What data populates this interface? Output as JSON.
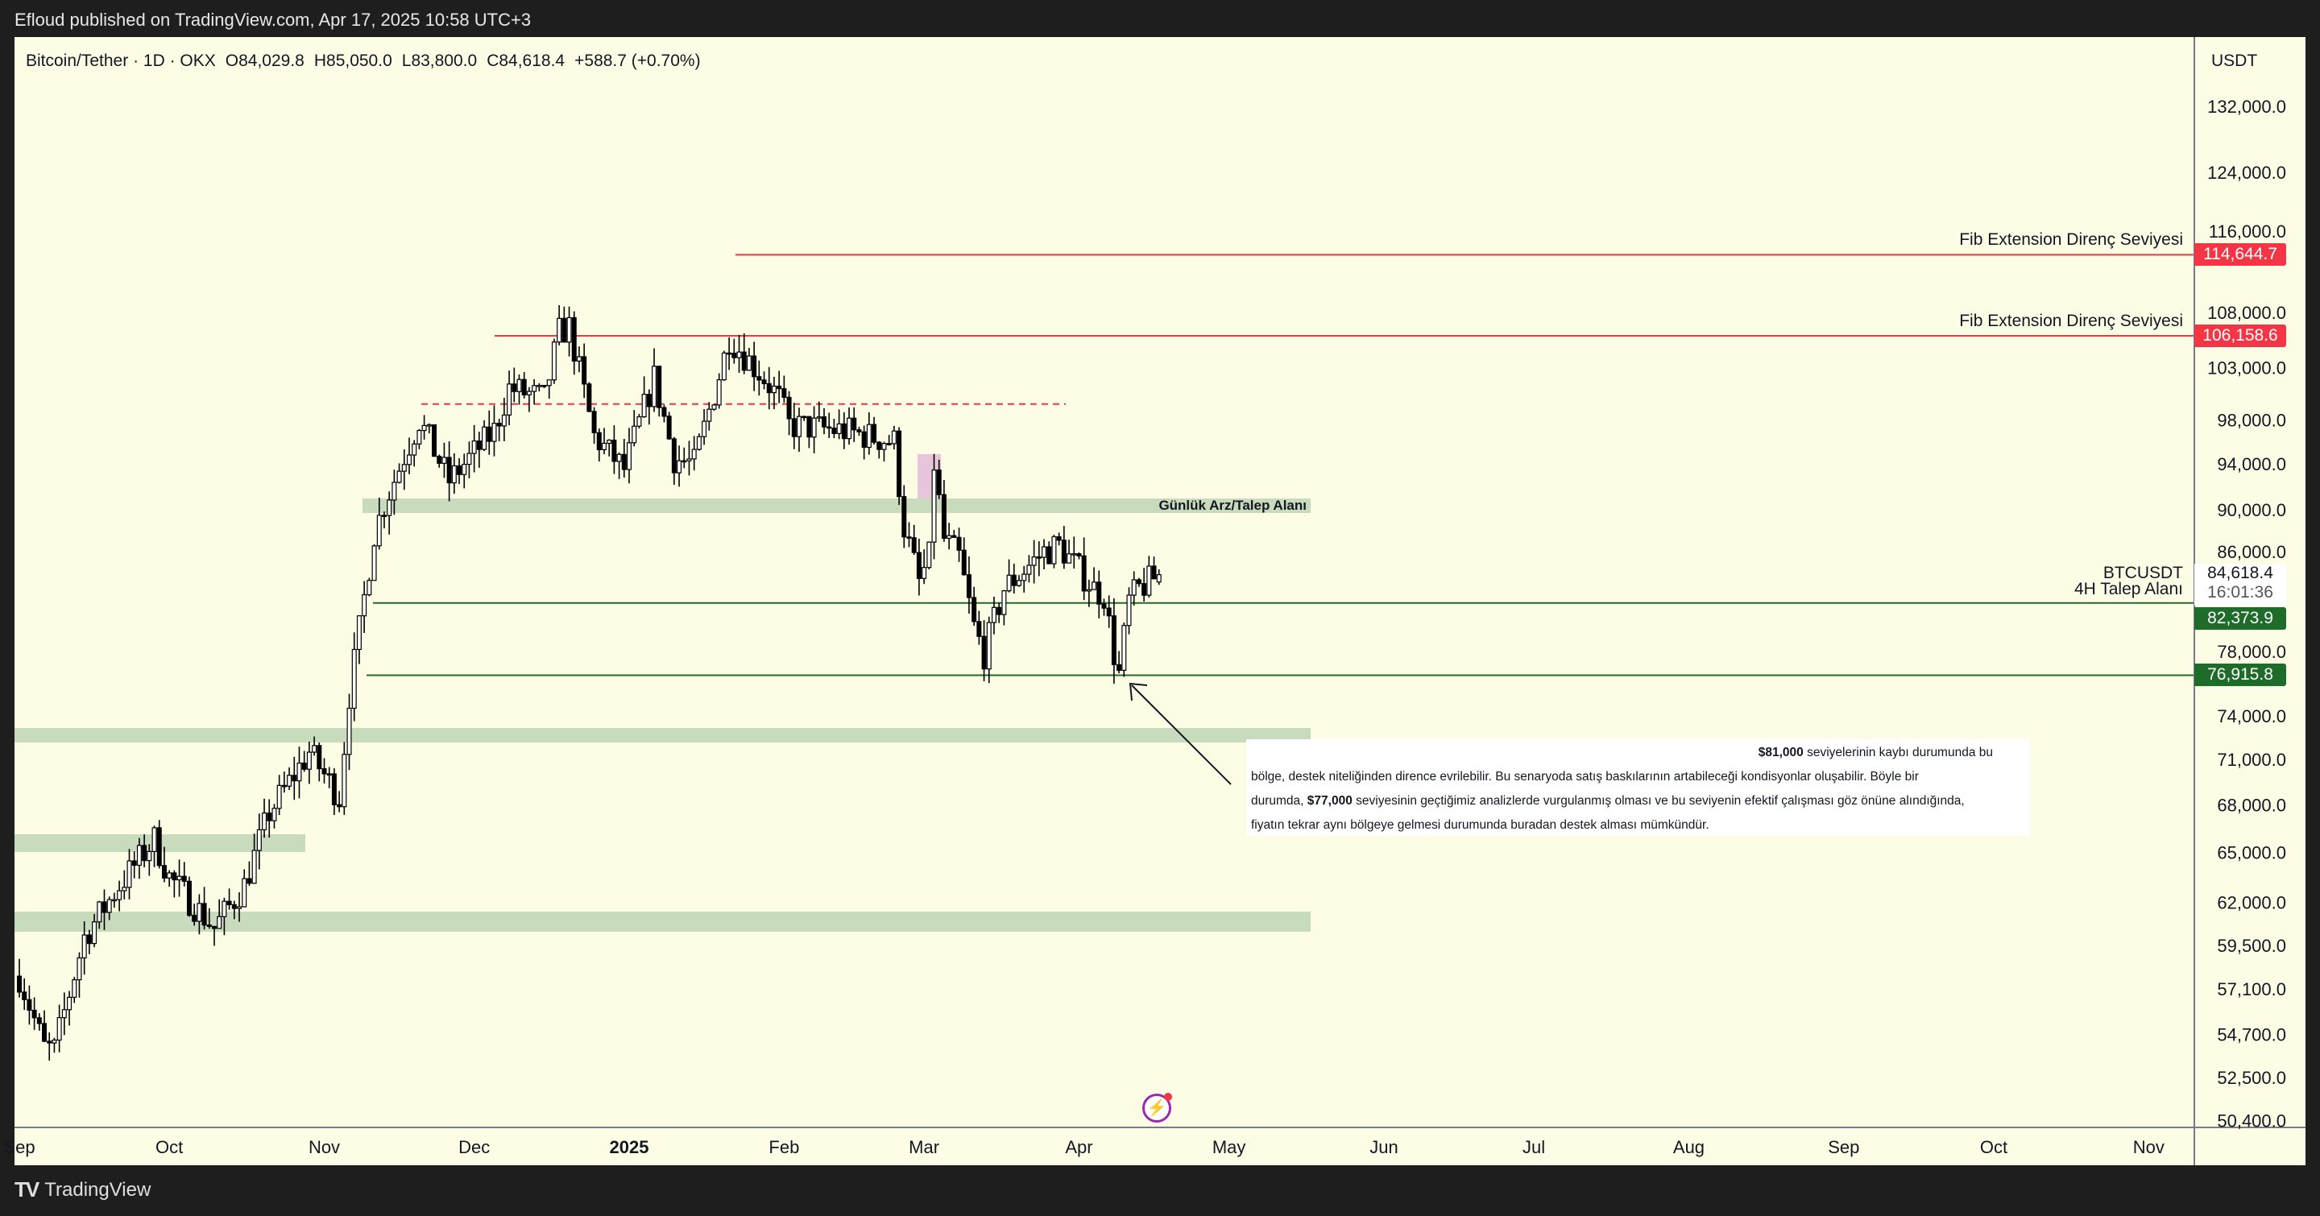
{
  "publish_info": "Efloud published on TradingView.com, Apr 17, 2025 10:58 UTC+3",
  "legend": {
    "symbol": "Bitcoin/Tether · 1D · OKX",
    "open": "O84,029.8",
    "high": "H85,050.0",
    "low": "L83,800.0",
    "close": "C84,618.4",
    "change": "+588.7 (+0.70%)"
  },
  "axis": {
    "unit": "USDT",
    "price_ticks": [
      132000,
      124000,
      116000,
      108000,
      103000,
      98000,
      94000,
      90000,
      86000,
      78000,
      74000,
      71000,
      68000,
      65000,
      62000,
      59500,
      57100,
      54700,
      52500,
      50400
    ],
    "price_tick_labels": [
      "132,000.0",
      "124,000.0",
      "116,000.0",
      "108,000.0",
      "103,000.0",
      "98,000.0",
      "94,000.0",
      "90,000.0",
      "86,000.0",
      "78,000.0",
      "74,000.0",
      "71,000.0",
      "68,000.0",
      "65,000.0",
      "62,000.0",
      "59,500.0",
      "57,100.0",
      "54,700.0",
      "52,500.0",
      "50,400.0"
    ],
    "time_labels": [
      {
        "label": "Sep",
        "day": 0
      },
      {
        "label": "Oct",
        "day": 30
      },
      {
        "label": "Nov",
        "day": 61
      },
      {
        "label": "Dec",
        "day": 91
      },
      {
        "label": "2025",
        "day": 122
      },
      {
        "label": "Feb",
        "day": 153
      },
      {
        "label": "Mar",
        "day": 181
      },
      {
        "label": "Apr",
        "day": 212
      },
      {
        "label": "May",
        "day": 242
      },
      {
        "label": "Jun",
        "day": 273
      },
      {
        "label": "Jul",
        "day": 303
      },
      {
        "label": "Aug",
        "day": 334
      },
      {
        "label": "Sep",
        "day": 365
      },
      {
        "label": "Oct",
        "day": 395
      },
      {
        "label": "Nov",
        "day": 426
      }
    ]
  },
  "levels": {
    "fib1": {
      "text": "Fib Extension Direnç Seviyesi",
      "price": 114644.7,
      "label": "114,644.7"
    },
    "fib2": {
      "text": "Fib Extension Direnç Seviyesi",
      "price": 106158.6,
      "label": "106,158.6"
    },
    "h4": {
      "text": "4H Talep Alanı",
      "price": 82373.9,
      "label": "82,373.9"
    },
    "low": {
      "price": 76915.8,
      "label": "76,915.8"
    },
    "dashed_price": 99500
  },
  "current": {
    "symbol": "BTCUSDT",
    "price": "84,618.4",
    "countdown": "16:01:36"
  },
  "zone_label": "Günlük Arz/Talep Alanı",
  "note": {
    "l1_bold": "$81,000",
    "l1": " seviyelerinin kaybı durumunda bu",
    "l2": "bölge, destek niteliğinden dirence evrilebilir. Bu senaryoda satış baskılarının artabileceği kondisyonlar oluşabilir. Böyle bir",
    "l3_a": "durumda, ",
    "l3_bold": "$77,000",
    "l3_b": " seviyesinin geçtiğimiz analizlerde vurgulanmış olması ve bu seviyenin efektif çalışması göz önüne alındığında,",
    "l4": "fiyatın tekrar aynı bölgeye gelmesi durumunda buradan destek alması mümkündür."
  },
  "footer": {
    "logo": "17",
    "brand": "TradingView"
  },
  "chart_data": {
    "type": "candlestick",
    "start": "2024-09-01",
    "approx_close_path": [
      [
        0,
        57800
      ],
      [
        5,
        54000
      ],
      [
        7,
        53900
      ],
      [
        13,
        60000
      ],
      [
        20,
        63000
      ],
      [
        27,
        65800
      ],
      [
        30,
        63500
      ],
      [
        39,
        60500
      ],
      [
        45,
        63000
      ],
      [
        50,
        67500
      ],
      [
        58,
        71500
      ],
      [
        62,
        69500
      ],
      [
        64,
        68500
      ],
      [
        66,
        75500
      ],
      [
        71,
        88000
      ],
      [
        73,
        90500
      ],
      [
        80,
        98000
      ],
      [
        86,
        92500
      ],
      [
        95,
        97000
      ],
      [
        98,
        101000
      ],
      [
        105,
        100000
      ],
      [
        108,
        106500
      ],
      [
        110,
        107000
      ],
      [
        115,
        96500
      ],
      [
        121,
        93500
      ],
      [
        127,
        102000
      ],
      [
        131,
        94500
      ],
      [
        135,
        94000
      ],
      [
        141,
        104000
      ],
      [
        142,
        106000
      ],
      [
        149,
        102000
      ],
      [
        152,
        100000
      ],
      [
        154,
        97500
      ],
      [
        165,
        97000
      ],
      [
        175,
        96000
      ],
      [
        177,
        88500
      ],
      [
        180,
        84000
      ],
      [
        182,
        86000
      ],
      [
        183,
        94000
      ],
      [
        185,
        87500
      ],
      [
        188,
        86000
      ],
      [
        191,
        80500
      ],
      [
        193,
        78500
      ],
      [
        197,
        83500
      ],
      [
        205,
        86500
      ],
      [
        208,
        87000
      ],
      [
        215,
        83500
      ],
      [
        217,
        83000
      ],
      [
        219,
        78500
      ],
      [
        220,
        77000
      ],
      [
        222,
        82500
      ],
      [
        224,
        83500
      ],
      [
        228,
        84618
      ]
    ],
    "last": {
      "open": 84029.8,
      "high": 85050.0,
      "low": 83800.0,
      "close": 84618.4
    }
  }
}
